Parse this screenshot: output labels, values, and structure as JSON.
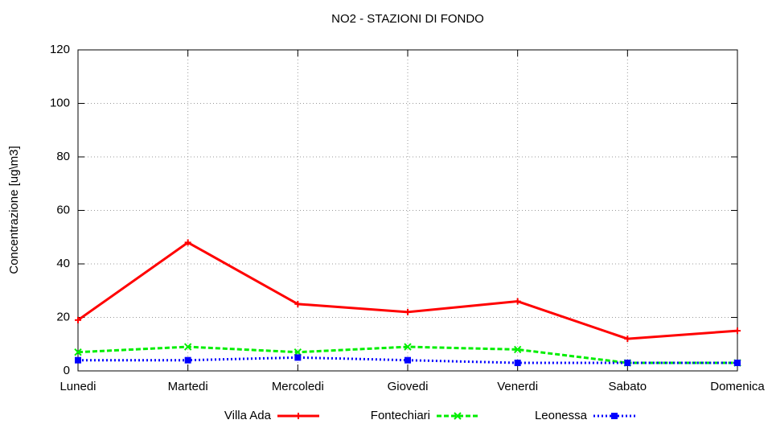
{
  "chart_data": {
    "type": "line",
    "title": "NO2 - STAZIONI DI FONDO",
    "y_label": "Concentrazione [ug\\m3]",
    "categories": [
      "Lunedi",
      "Martedi",
      "Mercoledi",
      "Giovedi",
      "Venerdi",
      "Sabato",
      "Domenica"
    ],
    "series": [
      {
        "name": "Villa Ada",
        "color": "#ff0000",
        "dash": "solid",
        "marker": "plus",
        "values": [
          19,
          48,
          25,
          22,
          26,
          12,
          15
        ]
      },
      {
        "name": "Fontechiari",
        "color": "#00ee00",
        "dash": "dashed",
        "marker": "cross",
        "values": [
          7,
          9,
          7,
          9,
          8,
          3,
          3
        ]
      },
      {
        "name": "Leonessa",
        "color": "#0000ff",
        "dash": "dotted",
        "marker": "square",
        "values": [
          4,
          4,
          5,
          4,
          3,
          3,
          3
        ]
      }
    ],
    "ylim": [
      0,
      120
    ],
    "yticks": [
      0,
      20,
      40,
      60,
      80,
      100,
      120
    ],
    "grid": true,
    "legend_position": "bottom"
  }
}
